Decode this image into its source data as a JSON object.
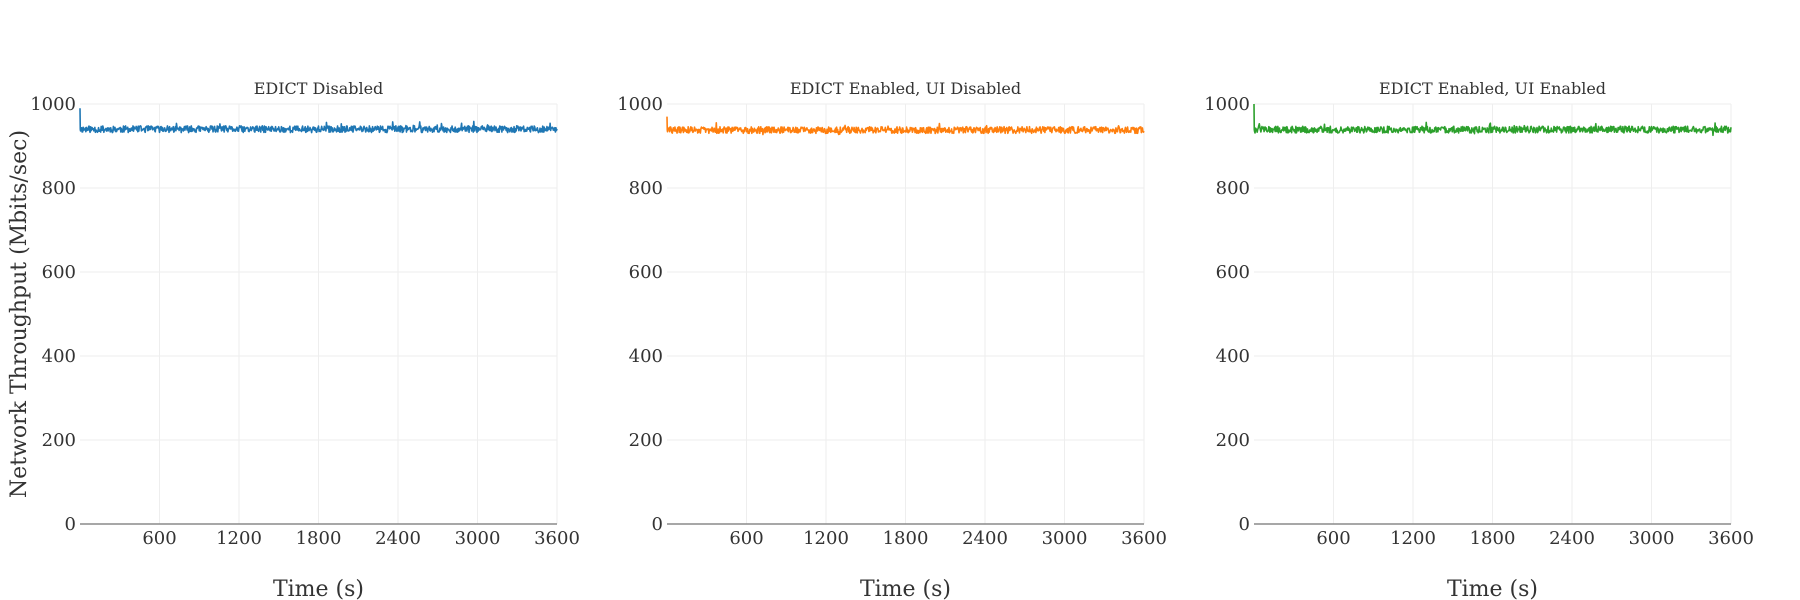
{
  "chart_data": {
    "type": "line",
    "ylabel": "Network Throughput (Mbits/sec)",
    "ylim": [
      0,
      1000
    ],
    "yticks": [
      0,
      200,
      400,
      600,
      800,
      1000
    ],
    "xlim": [
      0,
      3600
    ],
    "xticks": [
      600,
      1200,
      1800,
      2400,
      3000,
      3600
    ],
    "grid": true,
    "panels": [
      {
        "title": "EDICT Disabled",
        "xlabel": "Time (s)",
        "color": "#1f77b4",
        "start_value": 990,
        "mean": 940,
        "spread": 8,
        "seed": 11
      },
      {
        "title": "EDICT Enabled, UI Disabled",
        "xlabel": "Time (s)",
        "color": "#ff7f0e",
        "start_value": 970,
        "mean": 938,
        "spread": 8,
        "seed": 29
      },
      {
        "title": "EDICT Enabled, UI Enabled",
        "xlabel": "Time (s)",
        "color": "#2ca02c",
        "start_value": 1000,
        "mean": 939,
        "spread": 8,
        "seed": 47
      }
    ]
  }
}
